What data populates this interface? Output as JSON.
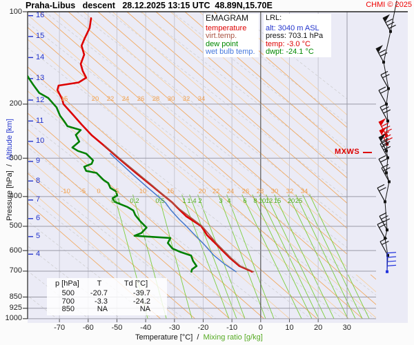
{
  "title": {
    "text": "Praha-Libus   descent   28.12.2025 13:15 UTC  48.89N,15.70E",
    "copyright": "CHMI © 2025"
  },
  "legend": {
    "heading": "EMAGRAM",
    "items": [
      {
        "label": "temperature",
        "color": "#dd0000"
      },
      {
        "label": "virt.temp.",
        "color": "#aa5544"
      },
      {
        "label": "dew point",
        "color": "#008800"
      },
      {
        "label": "wet bulb temp.",
        "color": "#4477dd"
      }
    ]
  },
  "lrl": {
    "heading": "LRL:",
    "lines": [
      {
        "text": "alt: 3040 m ASL",
        "color": "#2233cc"
      },
      {
        "text": "press: 703.1 hPa",
        "color": "#111111"
      },
      {
        "text": "temp: -3.0 °C",
        "color": "#dd0000"
      },
      {
        "text": "dwpt: -24.1 °C",
        "color": "#008800"
      }
    ]
  },
  "mxws_label": "MXWS",
  "axes": {
    "y_title": "Pressure [hPa]  /  ",
    "y_title_alt": "Altitude [km]",
    "x_title": "Temperature [°C]  /  ",
    "x_title_mix": "Mixing ratio [g/kg]",
    "pressure_ticks": [
      100,
      200,
      300,
      400,
      500,
      600,
      700,
      850,
      925,
      1000
    ],
    "altitude_ticks": [
      {
        "km": 16,
        "p": 103
      },
      {
        "km": 15,
        "p": 120.4
      },
      {
        "km": 14,
        "p": 141
      },
      {
        "km": 13,
        "p": 165.1
      },
      {
        "km": 12,
        "p": 194
      },
      {
        "km": 11,
        "p": 227
      },
      {
        "km": 10,
        "p": 264.4
      },
      {
        "km": 9,
        "p": 307.4
      },
      {
        "km": 8,
        "p": 356
      },
      {
        "km": 7,
        "p": 410.6
      },
      {
        "km": 6,
        "p": 472
      },
      {
        "km": 5,
        "p": 540.2
      },
      {
        "km": 4,
        "p": 616.4
      }
    ],
    "temp_ticks": [
      -70,
      -60,
      -50,
      -40,
      -30,
      -20,
      -10,
      0,
      10,
      20,
      30
    ]
  },
  "inline_labels": {
    "adiabats_200": [
      {
        "v": "15",
        "x": 93
      },
      {
        "v": "20",
        "x": 138
      },
      {
        "v": "22",
        "x": 160
      },
      {
        "v": "24",
        "x": 182
      },
      {
        "v": "26",
        "x": 204
      },
      {
        "v": "28",
        "x": 226
      },
      {
        "v": "30",
        "x": 248
      },
      {
        "v": "32",
        "x": 270
      },
      {
        "v": "34",
        "x": 292
      }
    ],
    "adiabats_400": [
      {
        "v": "-10",
        "x": 95
      },
      {
        "v": "-5",
        "x": 120
      },
      {
        "v": "0",
        "x": 143
      },
      {
        "v": "5",
        "x": 170
      },
      {
        "v": "10",
        "x": 207
      },
      {
        "v": "15",
        "x": 247
      },
      {
        "v": "20",
        "x": 293
      },
      {
        "v": "22",
        "x": 313
      },
      {
        "v": "24",
        "x": 334
      },
      {
        "v": "26",
        "x": 356
      },
      {
        "v": "28",
        "x": 377
      },
      {
        "v": "30",
        "x": 398
      },
      {
        "v": "32",
        "x": 420
      },
      {
        "v": "34",
        "x": 441
      }
    ],
    "mixing": [
      {
        "v": "0.1",
        "x": 168
      },
      {
        "v": "0.2",
        "x": 195
      },
      {
        "v": "0.5",
        "x": 232
      },
      {
        "v": "1",
        "x": 267
      },
      {
        "v": "1.4",
        "x": 278
      },
      {
        "v": "2",
        "x": 290
      },
      {
        "v": "3",
        "x": 320
      },
      {
        "v": "4",
        "x": 332
      },
      {
        "v": "6",
        "x": 355
      },
      {
        "v": "8",
        "x": 370
      },
      {
        "v": "10",
        "x": 380
      },
      {
        "v": "12",
        "x": 390
      },
      {
        "v": "15",
        "x": 402
      },
      {
        "v": "20",
        "x": 422
      },
      {
        "v": "25",
        "x": 433
      }
    ]
  },
  "table": {
    "headers": [
      "p [hPa]",
      "T",
      "Td [°C]"
    ],
    "rows": [
      [
        "500",
        "-20.7",
        "-39.7"
      ],
      [
        "700",
        "-3.3",
        "-24.2"
      ],
      [
        "850",
        "NA",
        "NA"
      ]
    ]
  },
  "guides": {
    "adiabats": {
      "y_ref": 277,
      "slope": 1.15,
      "color": "#f2a85c",
      "color_light": "#f7cf9e",
      "anchors": [
        20,
        45,
        70,
        95,
        120,
        143,
        170,
        207,
        247,
        293,
        313,
        334,
        356,
        377,
        398,
        420,
        441,
        462,
        483,
        504,
        525,
        546,
        567,
        588,
        609,
        630
      ]
    },
    "moist": {
      "y_ref": 277,
      "slope": 1.28,
      "from": -154,
      "step": 46,
      "to": 674,
      "color": "#cccccc"
    },
    "mixing": {
      "y_ref": 291,
      "y_top": 282,
      "color": "#77cc33",
      "anchors": [
        [
          168,
          0.27
        ],
        [
          195,
          0.27
        ],
        [
          232,
          0.27
        ],
        [
          267,
          0.38
        ],
        [
          278,
          0.38
        ],
        [
          290,
          0.38
        ],
        [
          320,
          0.38
        ],
        [
          332,
          0.38
        ],
        [
          355,
          0.48
        ],
        [
          370,
          0.48
        ],
        [
          380,
          0.48
        ],
        [
          390,
          0.48
        ],
        [
          402,
          0.48
        ],
        [
          422,
          0.48
        ],
        [
          433,
          0.48
        ],
        [
          443,
          0.48
        ],
        [
          453,
          0.48
        ]
      ]
    }
  },
  "colors": {
    "plot_bg": "#ebebf6",
    "grid_h": "#9a9aa6",
    "grid_v": "#c6c6d2",
    "zero_line": "#555555",
    "border": "#222222",
    "altitude": "#2233cc",
    "orange_label": "#f0a050",
    "mixing_label": "#55aa22",
    "barb": "#141414",
    "barb_max": "#dd0000",
    "barb_low": "#2233dd"
  },
  "chart_data": {
    "type": "line",
    "title": "Emagram sounding, Praha-Libus descent, 28.12.2025 13:15 UTC, 48.89N,15.70E",
    "x_axis": {
      "label": "Temperature [°C] / Mixing ratio [g/kg]",
      "unit": "°C",
      "ticks": [
        -70,
        -60,
        -50,
        -40,
        -30,
        -20,
        -10,
        0,
        10,
        20,
        30
      ]
    },
    "y_axis": {
      "label": "Pressure [hPa] / Altitude [km]",
      "scale": "log",
      "range": [
        1000,
        100
      ],
      "ticks": [
        100,
        200,
        300,
        400,
        500,
        600,
        700,
        850,
        925,
        1000
      ]
    },
    "lrl_point": {
      "alt_m_asl": 3040,
      "press_hPa": 703.1,
      "temp_C": -3.0,
      "dwpt_C": -24.1
    },
    "series": [
      {
        "name": "temperature",
        "color": "#dd0000",
        "width": 2.6,
        "points_p_T": [
          [
            105,
            -59.0
          ],
          [
            113,
            -59.5
          ],
          [
            122,
            -61.2
          ],
          [
            129,
            -62.3
          ],
          [
            138,
            -61.4
          ],
          [
            148,
            -62.6
          ],
          [
            156,
            -61.9
          ],
          [
            164,
            -60.7
          ],
          [
            170,
            -63.3
          ],
          [
            174,
            -70.3
          ],
          [
            180,
            -70.7
          ],
          [
            192,
            -69.1
          ],
          [
            200,
            -68.6
          ],
          [
            216,
            -65.4
          ],
          [
            233,
            -62.3
          ],
          [
            253,
            -58.7
          ],
          [
            272,
            -54.7
          ],
          [
            302,
            -49.1
          ],
          [
            335,
            -43.4
          ],
          [
            372,
            -37.4
          ],
          [
            419,
            -30.7
          ],
          [
            441,
            -28.3
          ],
          [
            464,
            -25.9
          ],
          [
            499,
            -20.7
          ],
          [
            512,
            -19.9
          ],
          [
            534,
            -18.7
          ],
          [
            570,
            -15.6
          ],
          [
            601,
            -13.2
          ],
          [
            633,
            -10.8
          ],
          [
            674,
            -7.4
          ],
          [
            700,
            -3.3
          ],
          [
            703,
            -3.0
          ]
        ]
      },
      {
        "name": "virtual temperature",
        "color": "#aa5544",
        "width": 1.6,
        "points_p_T": [
          [
            272,
            -54.4
          ],
          [
            302,
            -48.8
          ],
          [
            372,
            -37.1
          ],
          [
            441,
            -28.0
          ],
          [
            499,
            -20.4
          ],
          [
            570,
            -15.2
          ],
          [
            633,
            -10.4
          ],
          [
            674,
            -7.0
          ],
          [
            703,
            -2.5
          ]
        ]
      },
      {
        "name": "dew point",
        "color": "#008000",
        "width": 2.6,
        "points_p_T": [
          [
            162,
            -81.1
          ],
          [
            165,
            -80.6
          ],
          [
            173,
            -79.1
          ],
          [
            184,
            -77.0
          ],
          [
            191,
            -73.9
          ],
          [
            205,
            -71.0
          ],
          [
            218,
            -69.8
          ],
          [
            227,
            -68.4
          ],
          [
            236,
            -67.2
          ],
          [
            243,
            -62.6
          ],
          [
            252,
            -64.3
          ],
          [
            265,
            -63.1
          ],
          [
            277,
            -65.5
          ],
          [
            284,
            -63.6
          ],
          [
            290,
            -60.7
          ],
          [
            305,
            -58.3
          ],
          [
            313,
            -58.8
          ],
          [
            320,
            -61.4
          ],
          [
            330,
            -60.7
          ],
          [
            335,
            -57.1
          ],
          [
            344,
            -55.9
          ],
          [
            353,
            -54.7
          ],
          [
            362,
            -53.0
          ],
          [
            375,
            -52.3
          ],
          [
            385,
            -50.3
          ],
          [
            397,
            -49.9
          ],
          [
            405,
            -51.5
          ],
          [
            416,
            -50.8
          ],
          [
            424,
            -48.7
          ],
          [
            433,
            -46.3
          ],
          [
            444,
            -44.3
          ],
          [
            460,
            -43.6
          ],
          [
            480,
            -42.0
          ],
          [
            505,
            -39.7
          ],
          [
            526,
            -41.5
          ],
          [
            537,
            -43.9
          ],
          [
            546,
            -31.4
          ],
          [
            567,
            -32.3
          ],
          [
            591,
            -30.7
          ],
          [
            607,
            -27.8
          ],
          [
            623,
            -24.2
          ],
          [
            649,
            -23.5
          ],
          [
            674,
            -22.3
          ],
          [
            691,
            -23.9
          ],
          [
            703,
            -24.1
          ]
        ]
      },
      {
        "name": "wet bulb temperature",
        "color": "#4477cc",
        "width": 1.5,
        "points_p_T": [
          [
            290,
            -52.3
          ],
          [
            302,
            -50.3
          ],
          [
            335,
            -45.1
          ],
          [
            372,
            -39.6
          ],
          [
            419,
            -33.1
          ],
          [
            441,
            -31.4
          ],
          [
            475,
            -28.3
          ],
          [
            499,
            -25.9
          ],
          [
            527,
            -23.5
          ],
          [
            570,
            -19.9
          ],
          [
            622,
            -16.3
          ],
          [
            662,
            -12.7
          ],
          [
            703,
            -8.6
          ]
        ]
      }
    ],
    "wind_barbs": {
      "staff_top": [
        575,
        1
      ],
      "levels": [
        {
          "p": 116,
          "x": 566,
          "feathers": 3,
          "flag": true,
          "color": "#141414"
        },
        {
          "p": 146,
          "x": 556,
          "feathers": 2,
          "flag": true,
          "color": "#141414"
        },
        {
          "p": 178,
          "x": 563,
          "feathers": 2,
          "flag": false,
          "color": "#141414"
        },
        {
          "p": 200,
          "x": 560,
          "feathers": 2,
          "flag": false,
          "color": "#141414"
        },
        {
          "p": 227,
          "x": 562,
          "feathers": 3,
          "flag": false,
          "color": "#141414"
        },
        {
          "p": 253,
          "x": 560,
          "feathers": 3,
          "flag": true,
          "color": "#dd0000"
        },
        {
          "p": 270,
          "x": 561,
          "feathers": 3,
          "flag": true,
          "color": "#dd0000"
        },
        {
          "p": 284,
          "x": 560,
          "feathers": 2,
          "flag": true,
          "color": "#141414"
        },
        {
          "p": 299,
          "x": 562,
          "feathers": 3,
          "flag": false,
          "color": "#141414"
        },
        {
          "p": 335,
          "x": 560,
          "feathers": 2,
          "flag": false,
          "color": "#141414"
        },
        {
          "p": 358,
          "x": 564,
          "feathers": 2,
          "flag": false,
          "color": "#141414"
        },
        {
          "p": 416,
          "x": 558,
          "feathers": 2,
          "flag": false,
          "color": "#141414"
        },
        {
          "p": 514,
          "x": 561,
          "feathers": 3,
          "flag": false,
          "color": "#141414"
        },
        {
          "p": 547,
          "x": 558,
          "feathers": 2,
          "flag": false,
          "color": "#141414"
        },
        {
          "p": 622,
          "x": 562,
          "feathers": 2,
          "flag": false,
          "color": "#141414"
        },
        {
          "p": 703,
          "x": 561,
          "feathers": 4,
          "flag": false,
          "color": "#2233dd",
          "up": true
        }
      ]
    }
  }
}
